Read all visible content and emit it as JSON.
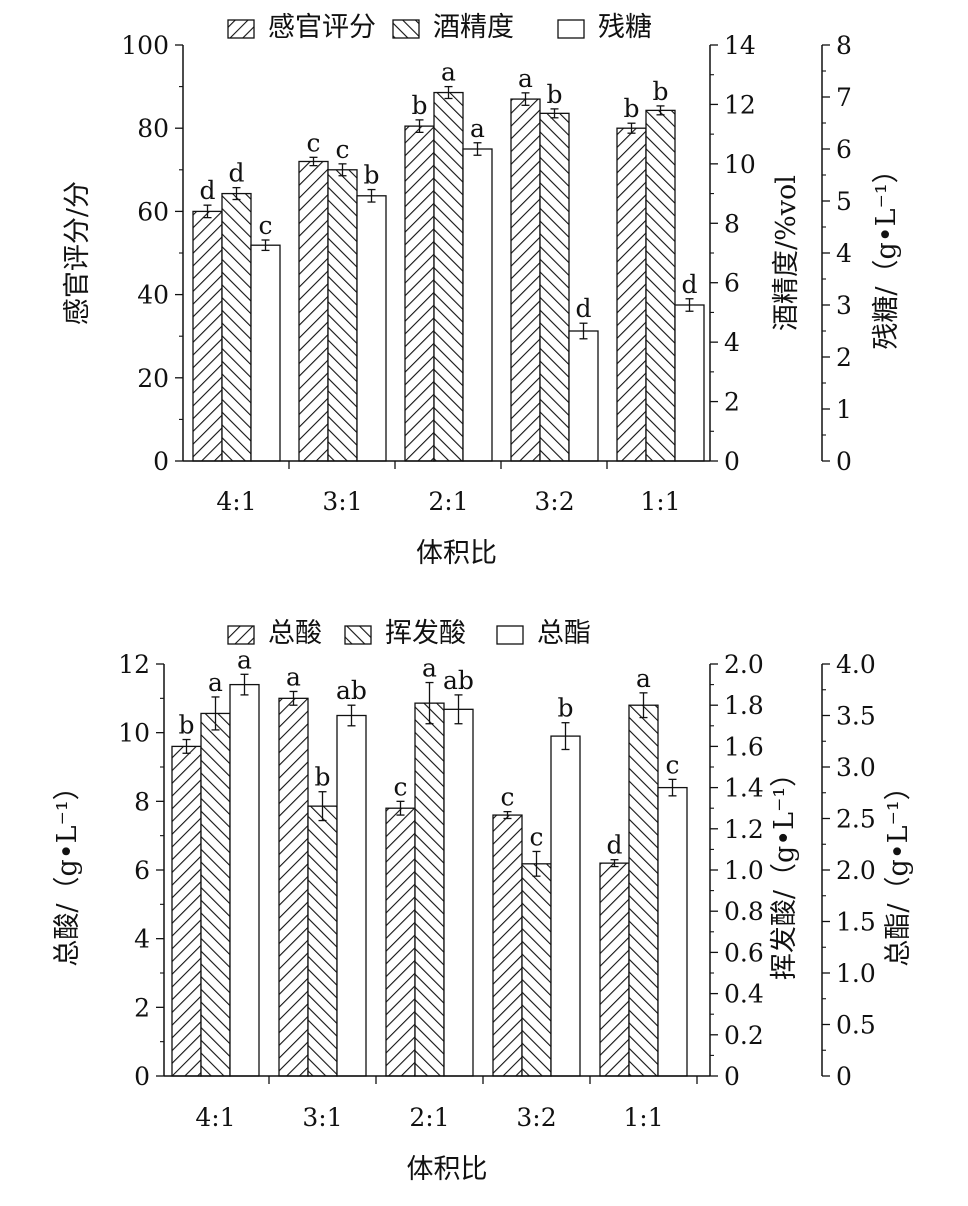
{
  "chart_data": [
    {
      "type": "bar",
      "categories": [
        "4:1",
        "3:1",
        "2:1",
        "3:2",
        "1:1"
      ],
      "xlabel": "体积比",
      "axes": [
        {
          "label": "感官评分/分",
          "ylim": [
            0,
            100
          ],
          "ticks": [
            "0",
            "20",
            "40",
            "60",
            "80",
            "100"
          ]
        },
        {
          "label": "酒精度/%vol",
          "ylim": [
            0,
            14
          ],
          "ticks": [
            "0",
            "2",
            "4",
            "6",
            "8",
            "10",
            "12",
            "14"
          ]
        },
        {
          "label": "残糖/（g•L⁻¹）",
          "ylim": [
            0,
            8
          ],
          "ticks": [
            "0",
            "1",
            "2",
            "3",
            "4",
            "5",
            "6",
            "7",
            "8"
          ]
        }
      ],
      "series": [
        {
          "name": "感官评分",
          "pattern": "hatch-right",
          "axis": 0,
          "values": [
            60,
            72,
            80.5,
            87,
            80
          ],
          "errors": [
            1.5,
            1,
            1.5,
            1.5,
            1.2
          ],
          "labels": [
            "d",
            "c",
            "b",
            "a",
            "b"
          ]
        },
        {
          "name": "酒精度",
          "pattern": "hatch-left",
          "axis": 1,
          "values": [
            9.0,
            9.8,
            12.4,
            11.7,
            11.8
          ],
          "errors": [
            0.2,
            0.2,
            0.2,
            0.15,
            0.15
          ],
          "labels": [
            "d",
            "c",
            "a",
            "b",
            "b"
          ]
        },
        {
          "name": "残糖",
          "pattern": "empty",
          "axis": 2,
          "values": [
            4.15,
            5.1,
            6.0,
            2.5,
            3.0
          ],
          "errors": [
            0.1,
            0.12,
            0.12,
            0.15,
            0.12
          ],
          "labels": [
            "c",
            "b",
            "a",
            "d",
            "d"
          ]
        }
      ],
      "legend": "top"
    },
    {
      "type": "bar",
      "categories": [
        "4:1",
        "3:1",
        "2:1",
        "3:2",
        "1:1"
      ],
      "xlabel": "体积比",
      "axes": [
        {
          "label": "总酸/（g•L⁻¹）",
          "ylim": [
            0,
            12
          ],
          "ticks": [
            "0",
            "2",
            "4",
            "6",
            "8",
            "10",
            "12"
          ]
        },
        {
          "label": "挥发酸/（g•L⁻¹）",
          "ylim": [
            0,
            2.0
          ],
          "ticks": [
            "0",
            "0.2",
            "0.4",
            "0.6",
            "0.8",
            "1.0",
            "1.2",
            "1.4",
            "1.6",
            "1.8",
            "2.0"
          ]
        },
        {
          "label": "总酯/（g•L⁻¹）",
          "ylim": [
            0,
            4.0
          ],
          "ticks": [
            "0",
            "0.5",
            "1.0",
            "1.5",
            "2.0",
            "2.5",
            "3.0",
            "3.5",
            "4.0"
          ]
        }
      ],
      "series": [
        {
          "name": "总酸",
          "pattern": "hatch-right",
          "axis": 0,
          "values": [
            9.6,
            11.0,
            7.8,
            7.6,
            6.2
          ],
          "errors": [
            0.2,
            0.2,
            0.2,
            0.1,
            0.1
          ],
          "labels": [
            "b",
            "a",
            "c",
            "c",
            "d"
          ]
        },
        {
          "name": "挥发酸",
          "pattern": "hatch-left",
          "axis": 1,
          "values": [
            1.76,
            1.31,
            1.81,
            1.03,
            1.8
          ],
          "errors": [
            0.08,
            0.07,
            0.1,
            0.06,
            0.06
          ],
          "labels": [
            "a",
            "b",
            "a",
            "c",
            "a"
          ]
        },
        {
          "name": "总酯",
          "pattern": "empty",
          "axis": 2,
          "values": [
            3.8,
            3.5,
            3.56,
            3.3,
            2.8
          ],
          "errors": [
            0.1,
            0.1,
            0.14,
            0.13,
            0.08
          ],
          "labels": [
            "a",
            "ab",
            "ab",
            "b",
            "c"
          ]
        }
      ],
      "legend": "top"
    }
  ]
}
